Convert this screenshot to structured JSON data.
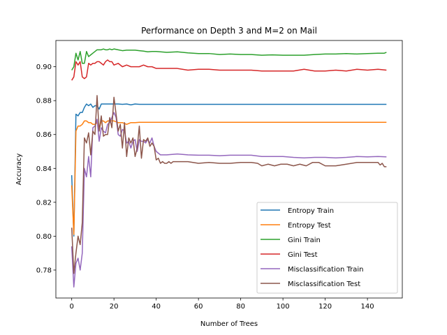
{
  "chart_data": {
    "type": "line",
    "title": "Performance on Depth 3 and M=2 on Mail",
    "xlabel": "Number of Trees",
    "ylabel": "Accuracy",
    "xlim": [
      -7.5,
      156.5
    ],
    "ylim": [
      0.7635,
      0.9155
    ],
    "xticks": [
      0,
      20,
      40,
      60,
      80,
      100,
      120,
      140
    ],
    "yticks": [
      0.78,
      0.8,
      0.82,
      0.84,
      0.86,
      0.88,
      0.9
    ],
    "ytick_labels": [
      "0.78",
      "0.80",
      "0.82",
      "0.84",
      "0.86",
      "0.88",
      "0.90"
    ],
    "legend_position": "lower-right",
    "series": [
      {
        "name": "Entropy Train",
        "color": "#1f77b4",
        "x": [
          0,
          1,
          2,
          3,
          4,
          5,
          6,
          7,
          8,
          9,
          10,
          11,
          12,
          13,
          14,
          15,
          16,
          17,
          18,
          20,
          22,
          24,
          26,
          28,
          30,
          32,
          35,
          40,
          60,
          80,
          100,
          120,
          149
        ],
        "y": [
          0.836,
          0.8,
          0.872,
          0.871,
          0.873,
          0.873,
          0.876,
          0.878,
          0.877,
          0.878,
          0.876,
          0.877,
          0.877,
          0.875,
          0.878,
          0.878,
          0.878,
          0.878,
          0.878,
          0.878,
          0.878,
          0.8778,
          0.878,
          0.8775,
          0.878,
          0.8778,
          0.8778,
          0.8778,
          0.8778,
          0.8778,
          0.8778,
          0.8778,
          0.8778
        ]
      },
      {
        "name": "Entropy Test",
        "color": "#ff7f0e",
        "x": [
          0,
          1,
          2,
          3,
          4,
          5,
          6,
          7,
          8,
          9,
          10,
          11,
          12,
          13,
          14,
          15,
          16,
          17,
          18,
          19,
          20,
          22,
          24,
          26,
          28,
          30,
          32,
          35,
          40,
          60,
          80,
          100,
          120,
          149
        ],
        "y": [
          0.83,
          0.801,
          0.862,
          0.865,
          0.865,
          0.866,
          0.868,
          0.868,
          0.867,
          0.867,
          0.866,
          0.866,
          0.867,
          0.863,
          0.868,
          0.868,
          0.867,
          0.868,
          0.868,
          0.868,
          0.868,
          0.867,
          0.867,
          0.866,
          0.867,
          0.867,
          0.8672,
          0.8672,
          0.8672,
          0.8672,
          0.8672,
          0.8672,
          0.8672,
          0.8672
        ]
      },
      {
        "name": "Gini Train",
        "color": "#2ca02c",
        "x": [
          0,
          1,
          2,
          3,
          4,
          5,
          6,
          7,
          8,
          9,
          10,
          11,
          12,
          13,
          14,
          15,
          16,
          17,
          18,
          19,
          20,
          22,
          24,
          26,
          28,
          30,
          32,
          34,
          36,
          38,
          40,
          45,
          50,
          55,
          60,
          65,
          70,
          75,
          80,
          85,
          90,
          95,
          100,
          105,
          110,
          115,
          120,
          125,
          130,
          135,
          140,
          145,
          148,
          149
        ],
        "y": [
          0.898,
          0.9,
          0.908,
          0.904,
          0.909,
          0.902,
          0.902,
          0.909,
          0.906,
          0.907,
          0.908,
          0.909,
          0.91,
          0.91,
          0.91,
          0.9105,
          0.91,
          0.91,
          0.9105,
          0.91,
          0.9105,
          0.91,
          0.9095,
          0.9098,
          0.9098,
          0.9098,
          0.9095,
          0.9092,
          0.9088,
          0.909,
          0.909,
          0.9085,
          0.9088,
          0.9082,
          0.9078,
          0.9078,
          0.9072,
          0.9075,
          0.9072,
          0.9072,
          0.9068,
          0.907,
          0.9068,
          0.9068,
          0.9068,
          0.9072,
          0.9075,
          0.9075,
          0.9078,
          0.9075,
          0.9078,
          0.908,
          0.908,
          0.9085
        ]
      },
      {
        "name": "Gini Test",
        "color": "#d62728",
        "x": [
          0,
          1,
          2,
          3,
          4,
          5,
          6,
          7,
          8,
          9,
          10,
          11,
          12,
          13,
          14,
          15,
          16,
          17,
          18,
          19,
          20,
          22,
          24,
          26,
          28,
          30,
          32,
          34,
          36,
          38,
          40,
          45,
          50,
          55,
          60,
          65,
          70,
          75,
          80,
          85,
          90,
          95,
          100,
          105,
          110,
          115,
          120,
          125,
          130,
          135,
          140,
          145,
          149
        ],
        "y": [
          0.892,
          0.894,
          0.903,
          0.901,
          0.903,
          0.894,
          0.893,
          0.894,
          0.902,
          0.901,
          0.902,
          0.902,
          0.903,
          0.903,
          0.902,
          0.901,
          0.903,
          0.904,
          0.903,
          0.903,
          0.901,
          0.902,
          0.9,
          0.901,
          0.9,
          0.9,
          0.9,
          0.901,
          0.9,
          0.9,
          0.899,
          0.899,
          0.899,
          0.898,
          0.8985,
          0.8985,
          0.898,
          0.898,
          0.898,
          0.898,
          0.8975,
          0.8975,
          0.8975,
          0.8975,
          0.8985,
          0.8975,
          0.8975,
          0.898,
          0.8975,
          0.8985,
          0.898,
          0.8985,
          0.898
        ]
      },
      {
        "name": "Misclassification Train",
        "color": "#9467bd",
        "x": [
          0,
          1,
          2,
          3,
          4,
          5,
          6,
          7,
          8,
          9,
          10,
          11,
          12,
          13,
          14,
          15,
          16,
          17,
          18,
          19,
          20,
          21,
          22,
          23,
          24,
          25,
          26,
          27,
          28,
          29,
          30,
          31,
          32,
          33,
          34,
          35,
          36,
          37,
          38,
          39,
          40,
          42,
          45,
          50,
          55,
          60,
          65,
          70,
          75,
          80,
          85,
          90,
          95,
          100,
          105,
          110,
          115,
          120,
          125,
          130,
          135,
          140,
          145,
          149
        ],
        "y": [
          0.794,
          0.77,
          0.784,
          0.787,
          0.78,
          0.79,
          0.84,
          0.835,
          0.847,
          0.835,
          0.864,
          0.865,
          0.869,
          0.856,
          0.864,
          0.862,
          0.861,
          0.866,
          0.867,
          0.87,
          0.873,
          0.87,
          0.86,
          0.859,
          0.863,
          0.862,
          0.855,
          0.856,
          0.852,
          0.856,
          0.857,
          0.85,
          0.857,
          0.856,
          0.856,
          0.855,
          0.857,
          0.855,
          0.858,
          0.853,
          0.85,
          0.848,
          0.848,
          0.8485,
          0.848,
          0.8478,
          0.8478,
          0.8475,
          0.8478,
          0.8478,
          0.8478,
          0.847,
          0.847,
          0.847,
          0.8465,
          0.8462,
          0.8465,
          0.8465,
          0.8462,
          0.8465,
          0.847,
          0.8468,
          0.847,
          0.8468
        ]
      },
      {
        "name": "Misclassification Test",
        "color": "#8c564b",
        "x": [
          0,
          1,
          2,
          3,
          4,
          5,
          6,
          7,
          8,
          9,
          10,
          11,
          12,
          13,
          14,
          15,
          16,
          17,
          18,
          19,
          20,
          21,
          22,
          23,
          24,
          25,
          26,
          27,
          28,
          29,
          30,
          31,
          32,
          33,
          34,
          35,
          36,
          37,
          38,
          39,
          40,
          41,
          42,
          43,
          44,
          45,
          46,
          47,
          48,
          50,
          55,
          60,
          65,
          70,
          75,
          80,
          85,
          88,
          90,
          93,
          96,
          99,
          102,
          105,
          108,
          111,
          114,
          117,
          120,
          125,
          130,
          135,
          140,
          145,
          146,
          147,
          148,
          149
        ],
        "y": [
          0.805,
          0.778,
          0.79,
          0.8,
          0.795,
          0.808,
          0.858,
          0.855,
          0.861,
          0.848,
          0.862,
          0.86,
          0.883,
          0.862,
          0.871,
          0.859,
          0.86,
          0.86,
          0.87,
          0.864,
          0.882,
          0.872,
          0.862,
          0.866,
          0.852,
          0.867,
          0.847,
          0.858,
          0.855,
          0.858,
          0.847,
          0.852,
          0.865,
          0.846,
          0.857,
          0.856,
          0.858,
          0.853,
          0.855,
          0.853,
          0.845,
          0.846,
          0.843,
          0.844,
          0.843,
          0.843,
          0.844,
          0.843,
          0.844,
          0.844,
          0.844,
          0.843,
          0.8435,
          0.843,
          0.843,
          0.8435,
          0.8435,
          0.843,
          0.8415,
          0.8425,
          0.8415,
          0.8425,
          0.8425,
          0.8415,
          0.8425,
          0.8415,
          0.8435,
          0.8435,
          0.8415,
          0.8415,
          0.8425,
          0.8435,
          0.8435,
          0.8435,
          0.842,
          0.843,
          0.841,
          0.841
        ]
      }
    ]
  }
}
